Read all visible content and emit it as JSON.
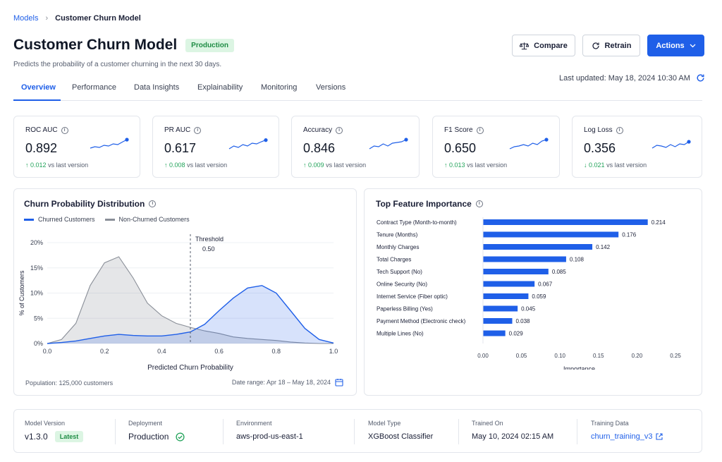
{
  "breadcrumb": {
    "parent": "Models",
    "current": "Customer Churn Model"
  },
  "header": {
    "title": "Customer Churn Model",
    "status_badge": "Production",
    "description": "Predicts the probability of a customer churning in the next 30 days.",
    "last_updated": "Last updated: May 18, 2024 10:30 AM"
  },
  "buttons": {
    "compare": "Compare",
    "retrain": "Retrain",
    "actions": "Actions"
  },
  "tabs": [
    {
      "label": "Overview",
      "active": true
    },
    {
      "label": "Performance"
    },
    {
      "label": "Data Insights"
    },
    {
      "label": "Explainability"
    },
    {
      "label": "Monitoring"
    },
    {
      "label": "Versions"
    }
  ],
  "metrics": [
    {
      "title": "ROC AUC",
      "value": "0.892",
      "delta": "0.012",
      "direction": "up",
      "delta_suffix": "vs last version",
      "trend": [
        0.35,
        0.45,
        0.4,
        0.55,
        0.5,
        0.65,
        0.6,
        0.78,
        0.95
      ]
    },
    {
      "title": "PR AUC",
      "value": "0.617",
      "delta": "0.008",
      "direction": "up",
      "delta_suffix": "vs last version",
      "trend": [
        0.3,
        0.5,
        0.4,
        0.6,
        0.5,
        0.7,
        0.65,
        0.8,
        0.92
      ]
    },
    {
      "title": "Accuracy",
      "value": "0.846",
      "delta": "0.009",
      "direction": "up",
      "delta_suffix": "vs last version",
      "trend": [
        0.3,
        0.5,
        0.45,
        0.65,
        0.5,
        0.7,
        0.75,
        0.8,
        0.95
      ]
    },
    {
      "title": "F1 Score",
      "value": "0.650",
      "delta": "0.013",
      "direction": "up",
      "delta_suffix": "vs last version",
      "trend": [
        0.3,
        0.45,
        0.5,
        0.6,
        0.5,
        0.7,
        0.6,
        0.85,
        0.95
      ]
    },
    {
      "title": "Log Loss",
      "value": "0.356",
      "delta": "0.021",
      "direction": "down",
      "delta_suffix": "vs last version",
      "trend": [
        0.35,
        0.55,
        0.5,
        0.4,
        0.6,
        0.45,
        0.65,
        0.6,
        0.8
      ]
    }
  ],
  "distribution": {
    "title": "Churn Probability Distribution",
    "legend": [
      "Churned Customers",
      "Non-Churned Customers"
    ],
    "threshold_label": "Threshold",
    "threshold_value": "0.50",
    "population": "Population: 125,000 customers",
    "date_range": "Date range: Apr 18 – May 18, 2024"
  },
  "feature_importance": {
    "title": "Top Feature Importance"
  },
  "chart_data": [
    {
      "type": "area",
      "title": "Churn Probability Distribution",
      "xlabel": "Predicted Churn Probability",
      "ylabel": "% of Customers",
      "xlim": [
        0,
        1
      ],
      "ylim": [
        0,
        20
      ],
      "x_ticks": [
        "0.0",
        "0.2",
        "0.4",
        "0.6",
        "0.8",
        "1.0"
      ],
      "y_ticks": [
        "0%",
        "5%",
        "10%",
        "15%",
        "20%"
      ],
      "legend_placement": "top-left",
      "threshold": 0.5,
      "colors": {
        "churned": "#1f5fe8",
        "non_churned": "#8a8f98"
      },
      "x": [
        0.0,
        0.05,
        0.1,
        0.15,
        0.2,
        0.25,
        0.3,
        0.35,
        0.4,
        0.45,
        0.5,
        0.55,
        0.6,
        0.65,
        0.7,
        0.75,
        0.8,
        0.85,
        0.9,
        0.95,
        1.0
      ],
      "series": [
        {
          "name": "Churned Customers",
          "values": [
            0,
            0.2,
            0.5,
            1.0,
            1.5,
            1.8,
            1.6,
            1.5,
            1.5,
            1.8,
            2.3,
            3.8,
            6.5,
            9.0,
            11.0,
            11.5,
            10.0,
            6.5,
            3.0,
            0.8,
            0.1
          ]
        },
        {
          "name": "Non-Churned Customers",
          "values": [
            0,
            0.8,
            4.0,
            11.5,
            16.0,
            17.2,
            13.0,
            8.0,
            5.5,
            4.0,
            3.2,
            2.5,
            2.0,
            1.3,
            1.0,
            0.8,
            0.6,
            0.3,
            0.1,
            0,
            0
          ]
        }
      ]
    },
    {
      "type": "bar",
      "title": "Top Feature Importance",
      "xlabel": "Importance",
      "xlim": [
        0,
        0.25
      ],
      "x_ticks": [
        "0.00",
        "0.05",
        "0.10",
        "0.15",
        "0.20",
        "0.25"
      ],
      "color": "#1f5fe8",
      "categories": [
        "Contract Type (Month-to-month)",
        "Tenure (Months)",
        "Monthly Charges",
        "Total Charges",
        "Tech Support (No)",
        "Online Security (No)",
        "Internet Service (Fiber optic)",
        "Paperless Billing (Yes)",
        "Payment Method (Electronic check)",
        "Multiple Lines (No)"
      ],
      "values": [
        0.214,
        0.176,
        0.142,
        0.108,
        0.085,
        0.067,
        0.059,
        0.045,
        0.038,
        0.029
      ],
      "value_labels": [
        "0.214",
        "0.176",
        "0.142",
        "0.108",
        "0.085",
        "0.067",
        "0.059",
        "0.045",
        "0.038",
        "0.029"
      ]
    }
  ],
  "footer": {
    "model_version": {
      "label": "Model Version",
      "value": "v1.3.0",
      "badge": "Latest"
    },
    "deployment": {
      "label": "Deployment",
      "value": "Production"
    },
    "environment": {
      "label": "Environment",
      "value": "aws-prod-us-east-1"
    },
    "model_type": {
      "label": "Model Type",
      "value": "XGBoost Classifier"
    },
    "trained_on": {
      "label": "Trained On",
      "value": "May 10, 2024 02:15 AM"
    },
    "training_data": {
      "label": "Training Data",
      "value": "churn_training_v3"
    }
  }
}
